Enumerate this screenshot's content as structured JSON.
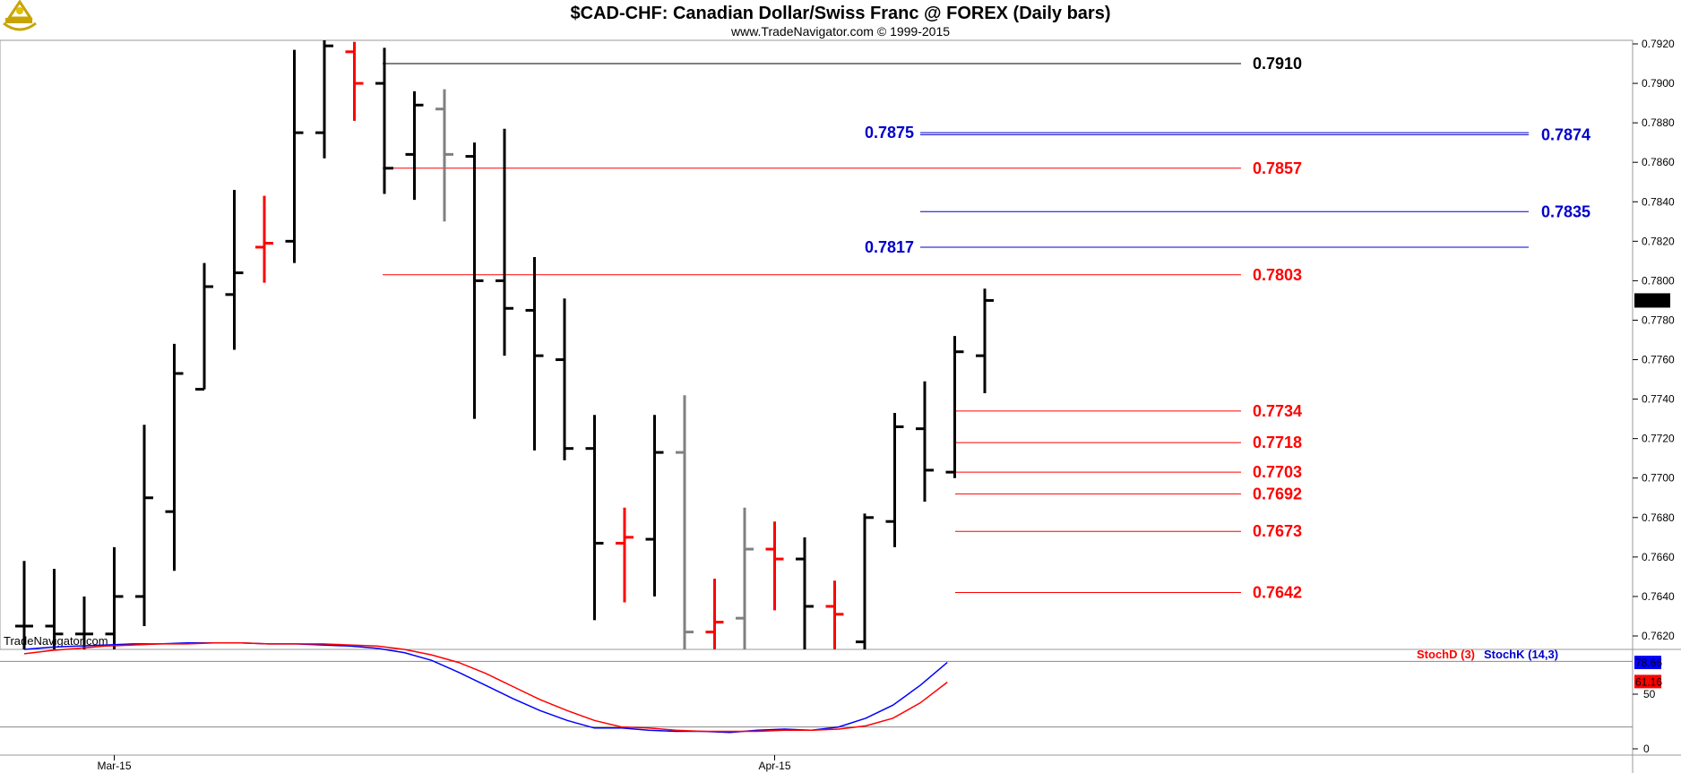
{
  "header": {
    "title": "$CAD-CHF:  Canadian Dollar/Swiss Franc @ FOREX  (Daily bars)",
    "subtitle": "www.TradeNavigator.com © 1999-2015",
    "watermark": "TradeNavigator.com",
    "logo_icon": "sextant-icon"
  },
  "colors": {
    "up": "#000000",
    "down": "#ff0000",
    "neutral": "#808080",
    "fib_red": "#ff0000",
    "fib_blue": "#0000cc",
    "fib_black": "#000000",
    "stoch_k": "#0000ff",
    "stoch_d": "#ff0000",
    "last_price_bg": "#000000",
    "border": "#999999"
  },
  "chart_data": [
    {
      "type": "ohlc",
      "ylim": [
        0.761,
        0.7925
      ],
      "yticks": [
        "0.7620",
        "0.7640",
        "0.7660",
        "0.7680",
        "0.7700",
        "0.7720",
        "0.7740",
        "0.7760",
        "0.7780",
        "0.7800",
        "0.7820",
        "0.7840",
        "0.7860",
        "0.7880",
        "0.7900",
        "0.7920"
      ],
      "last_price": "0.7790",
      "x_labels": [
        {
          "index": 3,
          "label": "Mar-15"
        },
        {
          "index": 25,
          "label": "Apr-15"
        }
      ],
      "bars": [
        {
          "o": 0.7625,
          "h": 0.7658,
          "l": 0.761,
          "c": 0.7625,
          "col": "up"
        },
        {
          "o": 0.7625,
          "h": 0.7654,
          "l": 0.761,
          "c": 0.7621,
          "col": "up"
        },
        {
          "o": 0.7621,
          "h": 0.764,
          "l": 0.761,
          "c": 0.7621,
          "col": "up"
        },
        {
          "o": 0.7621,
          "h": 0.7665,
          "l": 0.761,
          "c": 0.764,
          "col": "up"
        },
        {
          "o": 0.764,
          "h": 0.7727,
          "l": 0.7625,
          "c": 0.769,
          "col": "up"
        },
        {
          "o": 0.7683,
          "h": 0.7768,
          "l": 0.7653,
          "c": 0.7753,
          "col": "up"
        },
        {
          "o": 0.7745,
          "h": 0.7809,
          "l": 0.7745,
          "c": 0.7797,
          "col": "up"
        },
        {
          "o": 0.7793,
          "h": 0.7846,
          "l": 0.7765,
          "c": 0.7804,
          "col": "up"
        },
        {
          "o": 0.7817,
          "h": 0.7843,
          "l": 0.7799,
          "c": 0.7819,
          "col": "down"
        },
        {
          "o": 0.782,
          "h": 0.7917,
          "l": 0.7809,
          "c": 0.7875,
          "col": "up"
        },
        {
          "o": 0.7875,
          "h": 0.7922,
          "l": 0.7862,
          "c": 0.7919,
          "col": "up"
        },
        {
          "o": 0.7916,
          "h": 0.7921,
          "l": 0.7881,
          "c": 0.79,
          "col": "down"
        },
        {
          "o": 0.79,
          "h": 0.7918,
          "l": 0.7844,
          "c": 0.7857,
          "col": "up"
        },
        {
          "o": 0.7864,
          "h": 0.7896,
          "l": 0.7841,
          "c": 0.7889,
          "col": "up"
        },
        {
          "o": 0.7887,
          "h": 0.7897,
          "l": 0.783,
          "c": 0.7864,
          "col": "neutral"
        },
        {
          "o": 0.7863,
          "h": 0.787,
          "l": 0.773,
          "c": 0.78,
          "col": "up"
        },
        {
          "o": 0.78,
          "h": 0.7877,
          "l": 0.7762,
          "c": 0.7786,
          "col": "up"
        },
        {
          "o": 0.7785,
          "h": 0.7812,
          "l": 0.7714,
          "c": 0.7762,
          "col": "up"
        },
        {
          "o": 0.776,
          "h": 0.7791,
          "l": 0.7709,
          "c": 0.7715,
          "col": "up"
        },
        {
          "o": 0.7715,
          "h": 0.7732,
          "l": 0.7628,
          "c": 0.7667,
          "col": "up"
        },
        {
          "o": 0.7667,
          "h": 0.7685,
          "l": 0.7637,
          "c": 0.767,
          "col": "down"
        },
        {
          "o": 0.7669,
          "h": 0.7732,
          "l": 0.764,
          "c": 0.7713,
          "col": "up"
        },
        {
          "o": 0.7713,
          "h": 0.7742,
          "l": 0.761,
          "c": 0.7622,
          "col": "neutral"
        },
        {
          "o": 0.7622,
          "h": 0.7649,
          "l": 0.761,
          "c": 0.7627,
          "col": "down"
        },
        {
          "o": 0.7629,
          "h": 0.7685,
          "l": 0.761,
          "c": 0.7664,
          "col": "neutral"
        },
        {
          "o": 0.7664,
          "h": 0.7678,
          "l": 0.7633,
          "c": 0.7659,
          "col": "down"
        },
        {
          "o": 0.7659,
          "h": 0.767,
          "l": 0.761,
          "c": 0.7635,
          "col": "up"
        },
        {
          "o": 0.7635,
          "h": 0.7648,
          "l": 0.761,
          "c": 0.7631,
          "col": "down"
        },
        {
          "o": 0.7617,
          "h": 0.7682,
          "l": 0.761,
          "c": 0.768,
          "col": "up"
        },
        {
          "o": 0.7678,
          "h": 0.7733,
          "l": 0.7665,
          "c": 0.7726,
          "col": "up"
        },
        {
          "o": 0.7725,
          "h": 0.7749,
          "l": 0.7688,
          "c": 0.7704,
          "col": "up"
        },
        {
          "o": 0.7703,
          "h": 0.7772,
          "l": 0.77,
          "c": 0.7764,
          "col": "up"
        },
        {
          "o": 0.7762,
          "h": 0.7796,
          "l": 0.7743,
          "c": 0.779,
          "col": "up"
        }
      ],
      "levels": [
        {
          "value": 0.791,
          "label": "0.7910",
          "color": "fib_black",
          "from": 10,
          "to": 23
        },
        {
          "value": 0.7875,
          "label": "0.7875",
          "color": "fib_blue",
          "from": 25,
          "to": 43,
          "label_side": "left"
        },
        {
          "value": 0.7874,
          "label": "0.7874",
          "color": "fib_blue",
          "from": 25,
          "to": 43,
          "label_side": "right"
        },
        {
          "value": 0.7857,
          "label": "0.7857",
          "color": "fib_red",
          "from": 10,
          "to": 23
        },
        {
          "value": 0.7835,
          "label": "0.7835",
          "color": "fib_blue",
          "from": 25,
          "to": 43,
          "label_side": "right"
        },
        {
          "value": 0.7817,
          "label": "0.7817",
          "color": "fib_blue",
          "from": 25,
          "to": 43,
          "label_side": "left"
        },
        {
          "value": 0.7803,
          "label": "0.7803",
          "color": "fib_red",
          "from": 10,
          "to": 23
        },
        {
          "value": 0.7734,
          "label": "0.7734",
          "color": "fib_red",
          "from": 26,
          "to": 23
        },
        {
          "value": 0.7718,
          "label": "0.7718",
          "color": "fib_red",
          "from": 26,
          "to": 23
        },
        {
          "value": 0.7703,
          "label": "0.7703",
          "color": "fib_red",
          "from": 26,
          "to": 23
        },
        {
          "value": 0.7692,
          "label": "0.7692",
          "color": "fib_red",
          "from": 26,
          "to": 23
        },
        {
          "value": 0.7673,
          "label": "0.7673",
          "color": "fib_red",
          "from": 26,
          "to": 23
        },
        {
          "value": 0.7642,
          "label": "0.7642",
          "color": "fib_red",
          "from": 26,
          "to": 23
        }
      ]
    },
    {
      "type": "line",
      "ylim": [
        0,
        100
      ],
      "yticks": [
        "0",
        "50"
      ],
      "reference_lines": [
        20,
        80
      ],
      "legend": [
        {
          "name": "StochD (3)",
          "color": "stoch_d"
        },
        {
          "name": "StochK (14,3)",
          "color": "stoch_k"
        }
      ],
      "last_values": {
        "k": "78.66",
        "d": "61.16"
      },
      "series": [
        {
          "name": "StochK (14,3)",
          "color": "stoch_k",
          "values": [
            91,
            93,
            94,
            95,
            96,
            96,
            97,
            97,
            97,
            96,
            96,
            95,
            94,
            92,
            88,
            81,
            70,
            58,
            46,
            35,
            26,
            19,
            19,
            17,
            16,
            16,
            15,
            17,
            18,
            17,
            20,
            28,
            40,
            58,
            79
          ]
        },
        {
          "name": "StochD (3)",
          "color": "stoch_d",
          "values": [
            87,
            90,
            92,
            94,
            95,
            96,
            96,
            97,
            97,
            96,
            96,
            96,
            95,
            94,
            91,
            86,
            79,
            69,
            57,
            45,
            35,
            26,
            20,
            19,
            17,
            16,
            16,
            16,
            17,
            17,
            18,
            21,
            28,
            42,
            61
          ]
        }
      ]
    }
  ]
}
